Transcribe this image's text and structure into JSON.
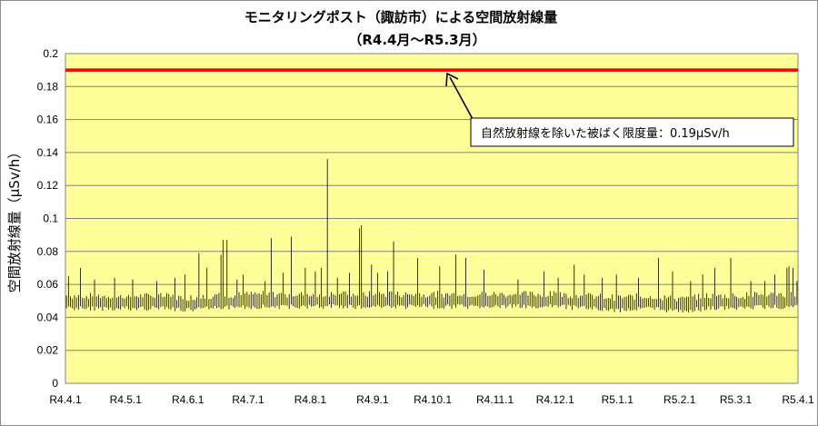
{
  "chart_data": {
    "type": "line",
    "title": "モニタリングポスト（諏訪市）による空間放射線量",
    "subtitle": "（R4.4月～R5.3月）",
    "ylabel": "空間放射線量（μSv/h）",
    "xlabel": "",
    "ylim": [
      0,
      0.2
    ],
    "y_ticks": [
      0,
      0.02,
      0.04,
      0.06,
      0.08,
      0.1,
      0.12,
      0.14,
      0.16,
      0.18,
      0.2
    ],
    "y_tick_labels": [
      "0",
      "0.02",
      "0.04",
      "0.06",
      "0.08",
      "0.1",
      "0.12",
      "0.14",
      "0.16",
      "0.18",
      "0.2"
    ],
    "x_tick_labels": [
      "R4.4.1",
      "R4.5.1",
      "R4.6.1",
      "R4.7.1",
      "R4.8.1",
      "R4.9.1",
      "R4.10.1",
      "R4.11.1",
      "R4.12.1",
      "R5.1.1",
      "R5.2.1",
      "R5.3.1",
      "R5.4.1"
    ],
    "x_tick_days": [
      0,
      30,
      61,
      91,
      122,
      153,
      183,
      214,
      244,
      275,
      306,
      334,
      365
    ],
    "grid": true,
    "background_color": "#ffff99",
    "series": [
      {
        "name": "",
        "color": "#000000",
        "baseline": [
          [
            0,
            0.049
          ],
          [
            15,
            0.049
          ],
          [
            30,
            0.049
          ],
          [
            45,
            0.049
          ],
          [
            61,
            0.048
          ],
          [
            75,
            0.049
          ],
          [
            91,
            0.05
          ],
          [
            105,
            0.05
          ],
          [
            122,
            0.05
          ],
          [
            137,
            0.05
          ],
          [
            153,
            0.05
          ],
          [
            168,
            0.05
          ],
          [
            183,
            0.05
          ],
          [
            198,
            0.05
          ],
          [
            214,
            0.05
          ],
          [
            229,
            0.05
          ],
          [
            244,
            0.05
          ],
          [
            259,
            0.049
          ],
          [
            275,
            0.048
          ],
          [
            290,
            0.049
          ],
          [
            306,
            0.047
          ],
          [
            320,
            0.049
          ],
          [
            334,
            0.049
          ],
          [
            350,
            0.05
          ],
          [
            365,
            0.05
          ]
        ],
        "spikes": [
          [
            1,
            0.065
          ],
          [
            7,
            0.07
          ],
          [
            14,
            0.063
          ],
          [
            24,
            0.064
          ],
          [
            33,
            0.063
          ],
          [
            45,
            0.062
          ],
          [
            54,
            0.064
          ],
          [
            59,
            0.066
          ],
          [
            66,
            0.079
          ],
          [
            70,
            0.07
          ],
          [
            77,
            0.078
          ],
          [
            78,
            0.087
          ],
          [
            80,
            0.087
          ],
          [
            85,
            0.063
          ],
          [
            88,
            0.066
          ],
          [
            99,
            0.062
          ],
          [
            102,
            0.088
          ],
          [
            108,
            0.067
          ],
          [
            112,
            0.089
          ],
          [
            119,
            0.07
          ],
          [
            124,
            0.068
          ],
          [
            127,
            0.07
          ],
          [
            130,
            0.136
          ],
          [
            135,
            0.064
          ],
          [
            141,
            0.067
          ],
          [
            146,
            0.094
          ],
          [
            147,
            0.096
          ],
          [
            152,
            0.072
          ],
          [
            155,
            0.067
          ],
          [
            160,
            0.068
          ],
          [
            163,
            0.086
          ],
          [
            175,
            0.076
          ],
          [
            186,
            0.071
          ],
          [
            194,
            0.078
          ],
          [
            199,
            0.076
          ],
          [
            208,
            0.069
          ],
          [
            225,
            0.063
          ],
          [
            238,
            0.068
          ],
          [
            245,
            0.064
          ],
          [
            253,
            0.072
          ],
          [
            258,
            0.066
          ],
          [
            267,
            0.064
          ],
          [
            274,
            0.066
          ],
          [
            285,
            0.064
          ],
          [
            295,
            0.076
          ],
          [
            302,
            0.068
          ],
          [
            311,
            0.062
          ],
          [
            317,
            0.066
          ],
          [
            323,
            0.07
          ],
          [
            331,
            0.076
          ],
          [
            341,
            0.062
          ],
          [
            348,
            0.062
          ],
          [
            353,
            0.066
          ],
          [
            359,
            0.07
          ],
          [
            360,
            0.071
          ],
          [
            362,
            0.07
          ],
          [
            364,
            0.062
          ]
        ]
      }
    ],
    "reference_line": {
      "value": 0.19,
      "color": "#ff0000"
    },
    "annotation": {
      "text": "自然放射線を除いた被ばく限度量：0.19μSv/h",
      "points_to_day": 166,
      "points_to_value": 0.19
    }
  }
}
